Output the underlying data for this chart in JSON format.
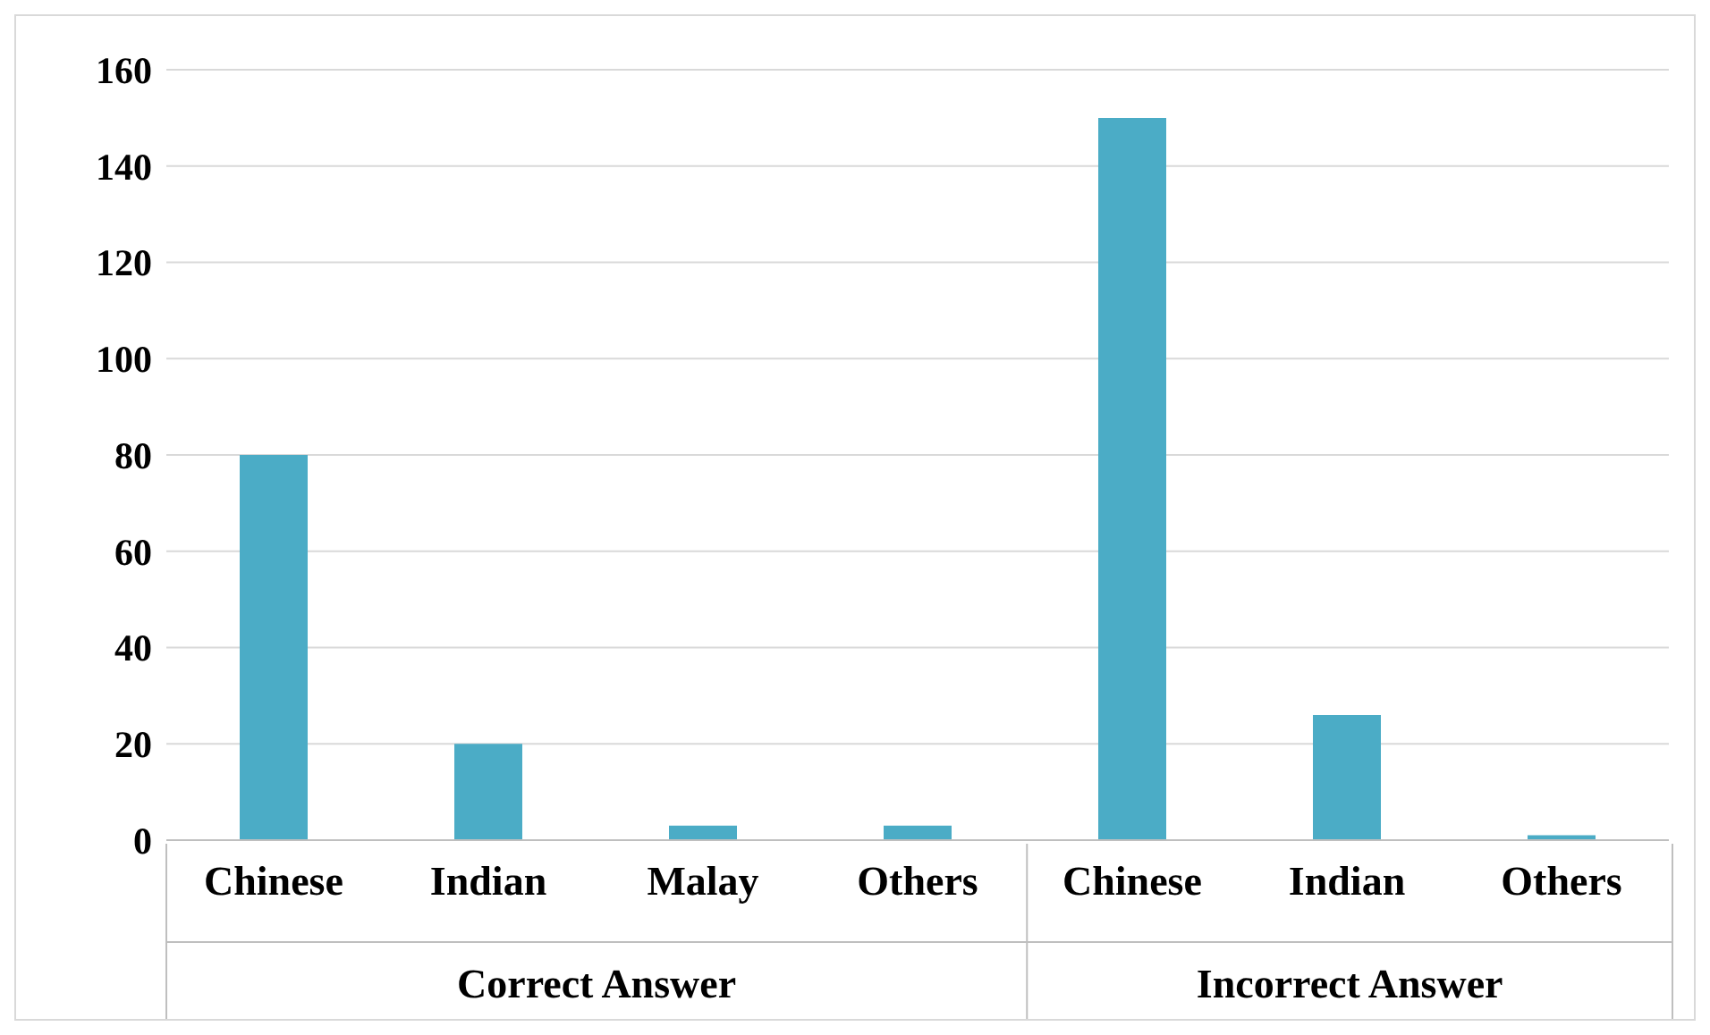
{
  "chart_data": {
    "type": "bar",
    "categories": [
      "Chinese",
      "Indian",
      "Malay",
      "Others",
      "Chinese",
      "Indian",
      "Others"
    ],
    "values": [
      80,
      20,
      3,
      3,
      150,
      26,
      1
    ],
    "color": "#4bacc6",
    "ylim": [
      0,
      160
    ],
    "yticks": [
      0,
      20,
      40,
      60,
      80,
      100,
      120,
      140,
      160
    ],
    "grid": "y",
    "annotations": [
      "Correct Answer",
      "Incorrect Answer"
    ]
  }
}
